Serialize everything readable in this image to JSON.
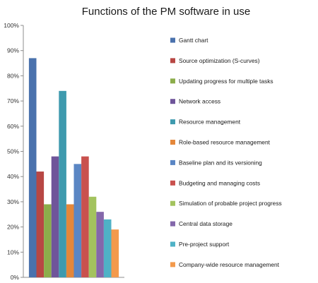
{
  "chart_data": {
    "type": "bar",
    "title": "Functions of the PM software in use",
    "xlabel": "",
    "ylabel": "",
    "ylim": [
      0,
      100
    ],
    "y_ticks": [
      "0%",
      "10%",
      "20%",
      "30%",
      "40%",
      "50%",
      "60%",
      "70%",
      "80%",
      "90%",
      "100%"
    ],
    "legend_position": "right",
    "grid": false,
    "series": [
      {
        "name": "Gantt chart",
        "value": 87,
        "color": "#4a72ad"
      },
      {
        "name": "Source optimization (S-curves)",
        "value": 42,
        "color": "#b84744"
      },
      {
        "name": "Updating progress for multiple tasks",
        "value": 29,
        "color": "#8cad4b"
      },
      {
        "name": "Network access",
        "value": 48,
        "color": "#6f559a"
      },
      {
        "name": "Resource management",
        "value": 74,
        "color": "#3e9aae"
      },
      {
        "name": "Role-based resource management",
        "value": 29,
        "color": "#e4873a"
      },
      {
        "name": "Baseline plan and its versioning",
        "value": 45,
        "color": "#5a86c4"
      },
      {
        "name": "Budgeting and managing costs",
        "value": 48,
        "color": "#c9514e"
      },
      {
        "name": "Simulation of probable project progress",
        "value": 32,
        "color": "#a3c35e"
      },
      {
        "name": "Central data storage",
        "value": 26,
        "color": "#8468ab"
      },
      {
        "name": "Pre-project support",
        "value": 23,
        "color": "#4fb2c6"
      },
      {
        "name": "Company-wide resource management",
        "value": 19,
        "color": "#f39a4c"
      }
    ]
  }
}
